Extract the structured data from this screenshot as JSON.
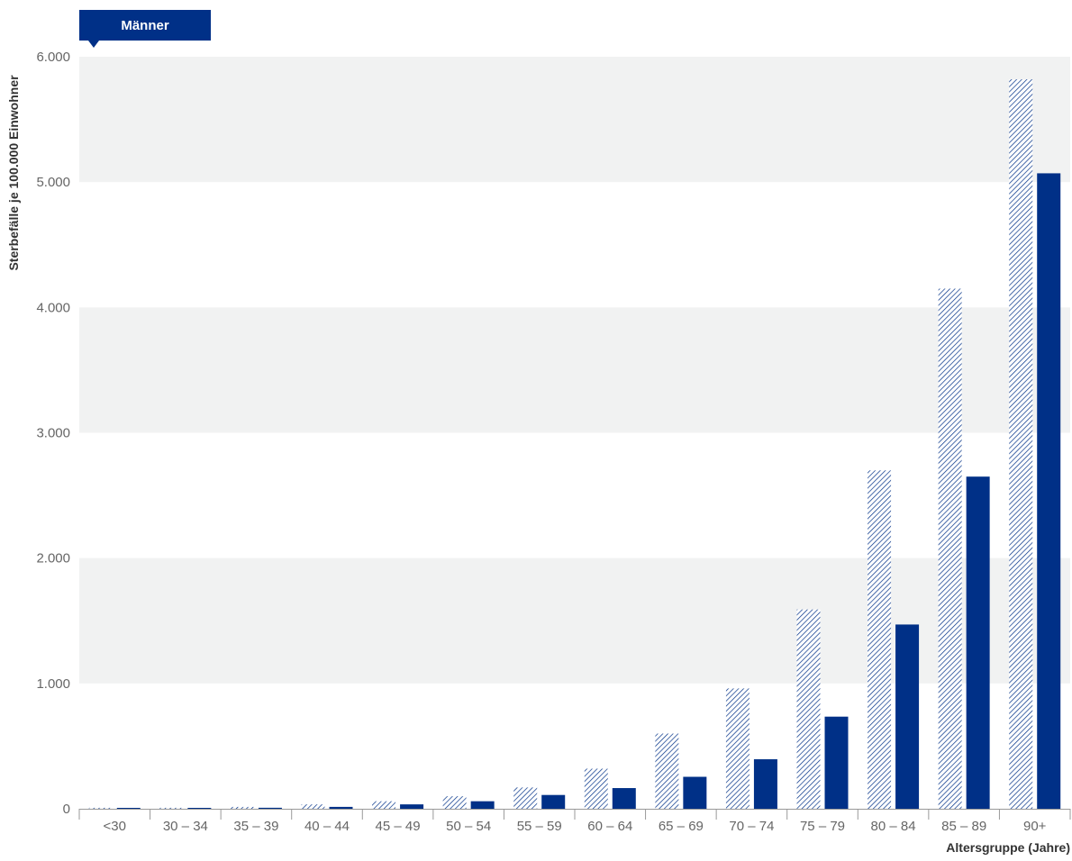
{
  "tab": {
    "label": "Männer"
  },
  "chart_data": {
    "type": "bar",
    "ylabel": "Sterbefälle je 100.000 Einwohner",
    "xlabel": "Altersgruppe (Jahre)",
    "ylim": [
      0,
      6000
    ],
    "yticks": [
      0,
      1000,
      2000,
      3000,
      4000,
      5000,
      6000
    ],
    "ytick_labels": [
      "0",
      "1.000",
      "2.000",
      "3.000",
      "4.000",
      "5.000",
      "6.000"
    ],
    "grid": "alternating horizontal bands",
    "categories": [
      "<30",
      "30 – 34",
      "35 – 39",
      "40 – 44",
      "45 – 49",
      "50 – 54",
      "55 – 59",
      "60 – 64",
      "65 – 69",
      "70 – 74",
      "75 – 79",
      "80 – 84",
      "85 – 89",
      "90+"
    ],
    "series": [
      {
        "style": "hatched",
        "color": "#003087",
        "values": [
          8,
          8,
          15,
          35,
          60,
          100,
          170,
          320,
          600,
          960,
          1590,
          2700,
          4150,
          5820
        ]
      },
      {
        "style": "solid",
        "color": "#003087",
        "values": [
          5,
          5,
          8,
          15,
          35,
          60,
          110,
          165,
          255,
          395,
          735,
          1470,
          2650,
          5070
        ]
      }
    ]
  },
  "colors": {
    "navy": "#003087",
    "band": "#f1f2f2",
    "axis": "#999999"
  }
}
